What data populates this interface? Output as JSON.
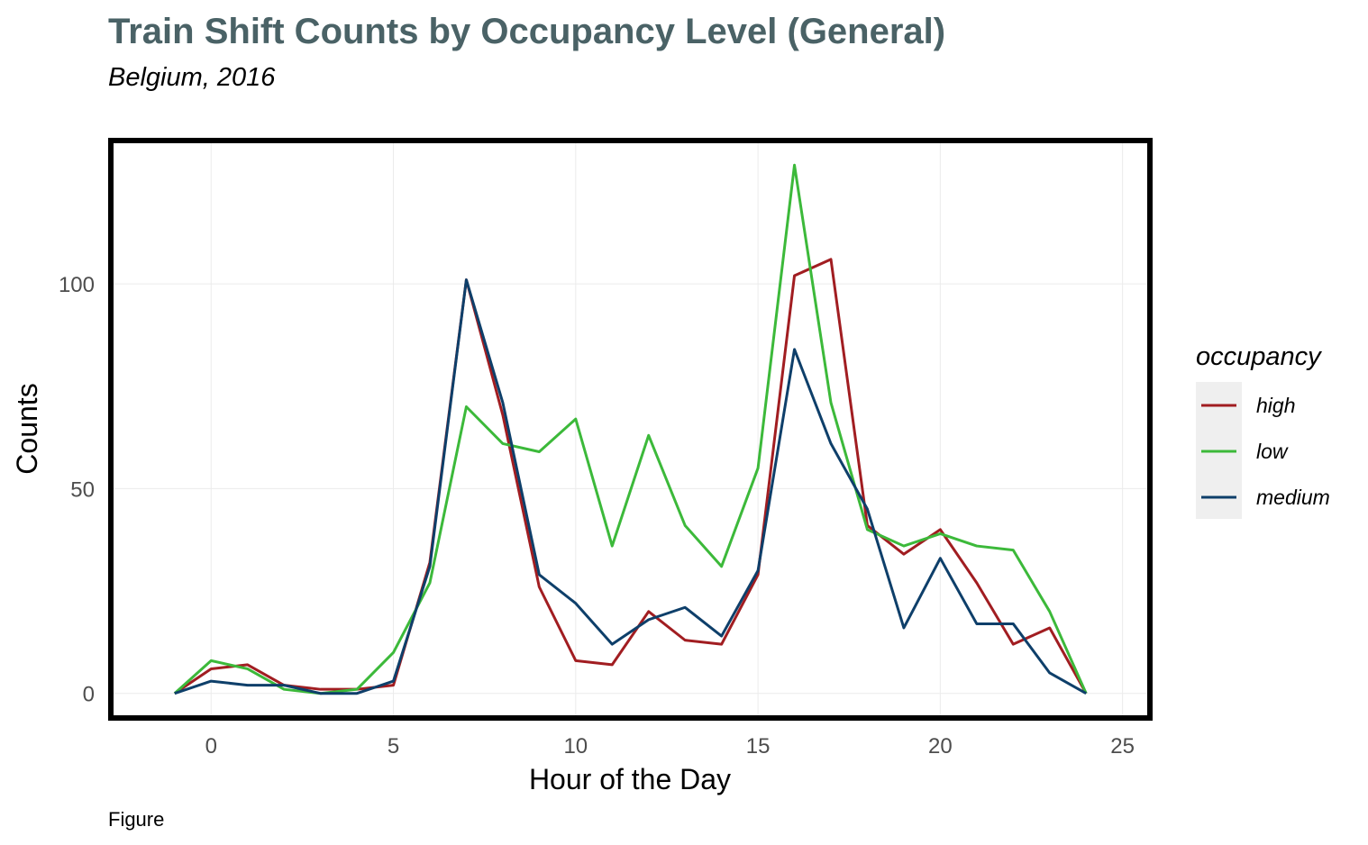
{
  "chart_data": {
    "type": "line",
    "title": "Train Shift Counts by Occupancy Level (General)",
    "subtitle": "Belgium, 2016",
    "caption": "Figure",
    "xlabel": "Hour of the Day",
    "ylabel": "Counts",
    "xlim": [
      -2.75,
      25.75
    ],
    "ylim": [
      -6,
      135
    ],
    "x_ticks": [
      0,
      5,
      10,
      15,
      20,
      25
    ],
    "y_ticks": [
      0,
      50,
      100
    ],
    "x_tick_labels": [
      "0",
      "5",
      "10",
      "15",
      "20",
      "25"
    ],
    "y_tick_labels": [
      "0",
      "50",
      "100"
    ],
    "grid": true,
    "legend": {
      "title": "occupancy",
      "position": "right"
    },
    "x": [
      -1,
      0,
      1,
      2,
      3,
      4,
      5,
      6,
      7,
      8,
      9,
      10,
      11,
      12,
      13,
      14,
      15,
      16,
      17,
      18,
      19,
      20,
      21,
      22,
      23,
      24
    ],
    "series": [
      {
        "name": "high",
        "color": "#a11d21",
        "values": [
          0,
          6,
          7,
          2,
          1,
          1,
          2,
          32,
          101,
          68,
          26,
          8,
          7,
          20,
          13,
          12,
          29,
          102,
          106,
          41,
          34,
          40,
          27,
          12,
          16,
          0
        ]
      },
      {
        "name": "low",
        "color": "#3cb93a",
        "values": [
          0,
          8,
          6,
          1,
          0,
          1,
          10,
          27,
          70,
          61,
          59,
          67,
          36,
          63,
          41,
          31,
          55,
          129,
          71,
          40,
          36,
          39,
          36,
          35,
          20,
          0
        ]
      },
      {
        "name": "medium",
        "color": "#0e3f6a",
        "values": [
          0,
          3,
          2,
          2,
          0,
          0,
          3,
          31,
          101,
          71,
          29,
          22,
          12,
          18,
          21,
          14,
          30,
          84,
          61,
          45,
          16,
          33,
          17,
          17,
          5,
          0
        ]
      }
    ]
  },
  "colors": {
    "title": "#4a6266",
    "text": "#000000",
    "tick_text": "#4d4d4d",
    "grid": "#ebebeb",
    "panel_border": "#000000",
    "legend_key_bg": "#efefef"
  }
}
